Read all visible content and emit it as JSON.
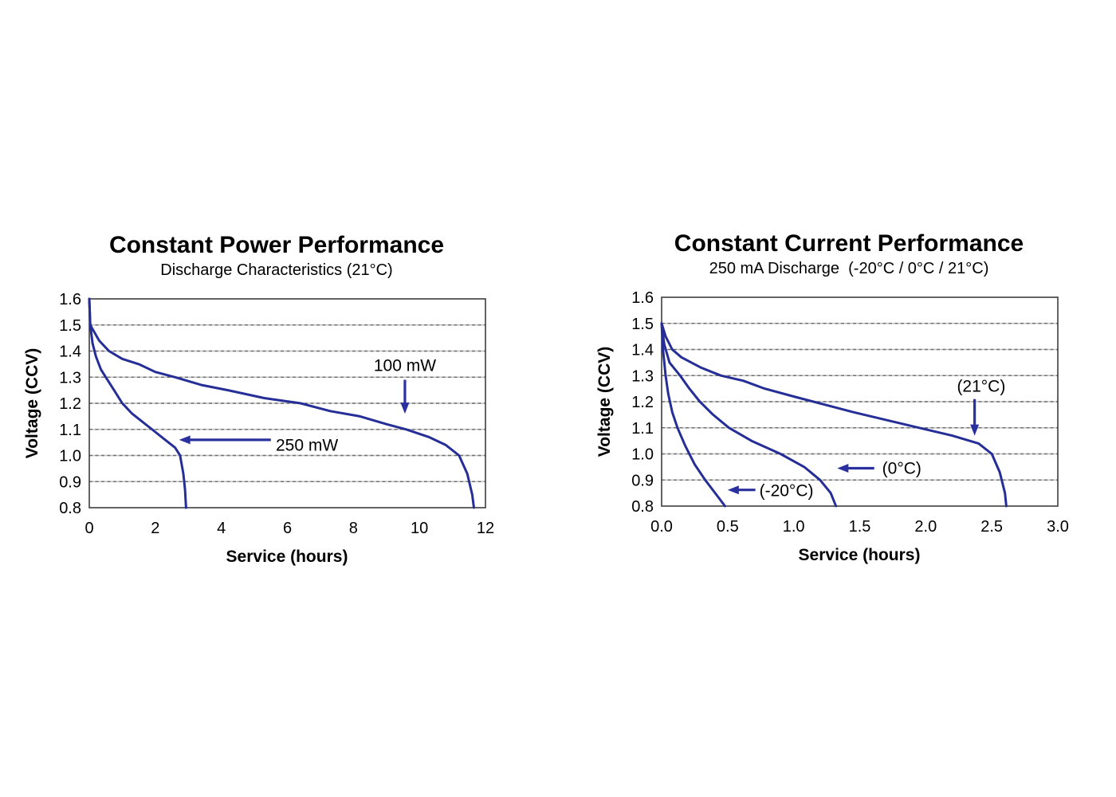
{
  "colors": {
    "curve": "#252e96",
    "annotation": "#2a309e",
    "grid_light": "#c4c4c4",
    "grid_dash": "#6f6f6f",
    "frame": "#3d3d3d",
    "text": "#000000",
    "background": "#ffffff"
  },
  "chart_data": [
    {
      "type": "line",
      "title": "Constant Power Performance",
      "subtitle": "Discharge Characteristics (21°C)",
      "xlabel": "Service (hours)",
      "ylabel": "Voltage (CCV)",
      "xlim": [
        0,
        12
      ],
      "ylim": [
        0.8,
        1.6
      ],
      "x_ticks": [
        "0",
        "2",
        "4",
        "6",
        "8",
        "10",
        "12"
      ],
      "y_ticks": [
        "1.6",
        "1.5",
        "1.4",
        "1.3",
        "1.2",
        "1.1",
        "1.0",
        "0.9",
        "0.8"
      ],
      "grid": "horizontal-dashed",
      "legend": "none",
      "series": [
        {
          "name": "250 mW",
          "points": [
            [
              0,
              1.6
            ],
            [
              0.03,
              1.5
            ],
            [
              0.1,
              1.43
            ],
            [
              0.2,
              1.38
            ],
            [
              0.35,
              1.33
            ],
            [
              0.5,
              1.3
            ],
            [
              0.75,
              1.25
            ],
            [
              1.0,
              1.2
            ],
            [
              1.3,
              1.16
            ],
            [
              1.6,
              1.13
            ],
            [
              2.0,
              1.09
            ],
            [
              2.3,
              1.06
            ],
            [
              2.6,
              1.03
            ],
            [
              2.75,
              1.0
            ],
            [
              2.85,
              0.93
            ],
            [
              2.9,
              0.87
            ],
            [
              2.93,
              0.8
            ]
          ]
        },
        {
          "name": "100 mW",
          "points": [
            [
              0,
              1.6
            ],
            [
              0.03,
              1.5
            ],
            [
              0.3,
              1.44
            ],
            [
              0.6,
              1.4
            ],
            [
              1.0,
              1.37
            ],
            [
              1.5,
              1.35
            ],
            [
              2.0,
              1.32
            ],
            [
              2.6,
              1.3
            ],
            [
              3.4,
              1.27
            ],
            [
              4.2,
              1.25
            ],
            [
              5.3,
              1.22
            ],
            [
              6.4,
              1.2
            ],
            [
              7.3,
              1.17
            ],
            [
              8.2,
              1.15
            ],
            [
              9.0,
              1.12
            ],
            [
              9.6,
              1.1
            ],
            [
              10.3,
              1.07
            ],
            [
              10.8,
              1.04
            ],
            [
              11.2,
              1.0
            ],
            [
              11.45,
              0.93
            ],
            [
              11.6,
              0.85
            ],
            [
              11.65,
              0.8
            ]
          ]
        }
      ],
      "annotations": [
        {
          "label": "100 mW",
          "label_x": 9.56,
          "label_y": 1.345,
          "anchor": "middle",
          "arrow": [
            [
              9.56,
              1.29
            ],
            [
              9.56,
              1.16
            ]
          ]
        },
        {
          "label": "250 mW",
          "label_x": 5.65,
          "label_y": 1.04,
          "anchor": "start",
          "arrow": [
            [
              5.5,
              1.06
            ],
            [
              2.72,
              1.06
            ]
          ]
        }
      ]
    },
    {
      "type": "line",
      "title": "Constant Current Performance",
      "subtitle": "250 mA Discharge  (-20°C / 0°C / 21°C)",
      "xlabel": "Service (hours)",
      "ylabel": "Voltage (CCV)",
      "xlim": [
        0,
        3
      ],
      "ylim": [
        0.8,
        1.6
      ],
      "x_ticks": [
        "0.0",
        "0.5",
        "1.0",
        "1.5",
        "2.0",
        "2.5",
        "3.0"
      ],
      "y_ticks": [
        "1.6",
        "1.5",
        "1.4",
        "1.3",
        "1.2",
        "1.1",
        "1.0",
        "0.9",
        "0.8"
      ],
      "grid": "horizontal-dashed",
      "legend": "none",
      "series": [
        {
          "name": "-20°C",
          "points": [
            [
              0,
              1.5
            ],
            [
              0.01,
              1.4
            ],
            [
              0.03,
              1.3
            ],
            [
              0.05,
              1.23
            ],
            [
              0.08,
              1.16
            ],
            [
              0.12,
              1.1
            ],
            [
              0.18,
              1.03
            ],
            [
              0.25,
              0.96
            ],
            [
              0.33,
              0.9
            ],
            [
              0.42,
              0.84
            ],
            [
              0.48,
              0.8
            ]
          ]
        },
        {
          "name": "0°C",
          "points": [
            [
              0,
              1.5
            ],
            [
              0.02,
              1.42
            ],
            [
              0.06,
              1.35
            ],
            [
              0.14,
              1.3
            ],
            [
              0.21,
              1.25
            ],
            [
              0.29,
              1.2
            ],
            [
              0.39,
              1.15
            ],
            [
              0.51,
              1.1
            ],
            [
              0.68,
              1.05
            ],
            [
              0.9,
              1.0
            ],
            [
              1.08,
              0.95
            ],
            [
              1.2,
              0.9
            ],
            [
              1.28,
              0.85
            ],
            [
              1.32,
              0.8
            ]
          ]
        },
        {
          "name": "21°C",
          "points": [
            [
              0,
              1.5
            ],
            [
              0.03,
              1.45
            ],
            [
              0.08,
              1.4
            ],
            [
              0.15,
              1.37
            ],
            [
              0.3,
              1.33
            ],
            [
              0.45,
              1.3
            ],
            [
              0.62,
              1.28
            ],
            [
              0.78,
              1.25
            ],
            [
              1.0,
              1.22
            ],
            [
              1.15,
              1.2
            ],
            [
              1.45,
              1.16
            ],
            [
              1.7,
              1.13
            ],
            [
              1.95,
              1.1
            ],
            [
              2.2,
              1.07
            ],
            [
              2.4,
              1.04
            ],
            [
              2.5,
              1.0
            ],
            [
              2.56,
              0.93
            ],
            [
              2.6,
              0.85
            ],
            [
              2.61,
              0.8
            ]
          ]
        }
      ],
      "annotations": [
        {
          "label": "(21°C)",
          "label_x": 2.42,
          "label_y": 1.26,
          "anchor": "middle",
          "arrow": [
            [
              2.37,
              1.21
            ],
            [
              2.37,
              1.07
            ]
          ]
        },
        {
          "label": "(0°C)",
          "label_x": 1.67,
          "label_y": 0.945,
          "anchor": "start",
          "arrow": [
            [
              1.61,
              0.945
            ],
            [
              1.33,
              0.945
            ]
          ]
        },
        {
          "label": "(-20°C)",
          "label_x": 0.74,
          "label_y": 0.86,
          "anchor": "start",
          "arrow": [
            [
              0.71,
              0.862
            ],
            [
              0.5,
              0.862
            ]
          ]
        }
      ]
    }
  ]
}
